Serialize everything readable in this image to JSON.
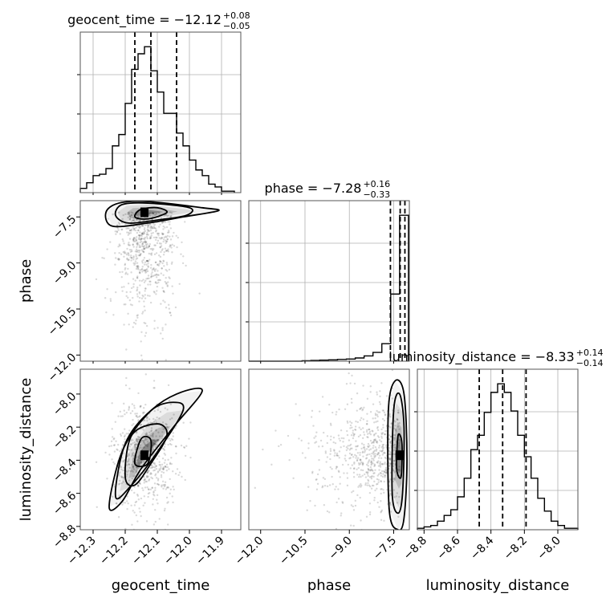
{
  "chart_data": {
    "type": "corner",
    "parameters": [
      "geocent_time",
      "phase",
      "luminosity_distance"
    ],
    "marginals": [
      {
        "parameter": "geocent_time",
        "title_main": "geocent_time = −12.12",
        "title_upper": "+0.08",
        "title_lower": "−0.05",
        "median": -12.12,
        "q_low": -12.17,
        "q_high": -12.04,
        "range": [
          -12.34,
          -11.84
        ],
        "bin_edges": [
          -12.34,
          -12.32,
          -12.3,
          -12.28,
          -12.26,
          -12.24,
          -12.22,
          -12.2,
          -12.18,
          -12.16,
          -12.14,
          -12.12,
          -12.1,
          -12.08,
          -12.06,
          -12.04,
          -12.02,
          -12.0,
          -11.98,
          -11.96,
          -11.94,
          -11.92,
          -11.9,
          -11.88,
          -11.86
        ],
        "counts": [
          3,
          7,
          12,
          13,
          17,
          33,
          41,
          63,
          87,
          98,
          103,
          86,
          71,
          56,
          56,
          42,
          33,
          23,
          16,
          12,
          6,
          4,
          1,
          1
        ]
      },
      {
        "parameter": "phase",
        "title_main": "phase = −7.28",
        "title_upper": "+0.16",
        "title_lower": "−0.33",
        "median": -7.28,
        "q_low": -7.61,
        "q_high": -7.12,
        "range": [
          -12.4,
          -6.97
        ],
        "bin_edges": [
          -12.4,
          -12.1,
          -11.8,
          -11.5,
          -11.2,
          -10.9,
          -10.6,
          -10.3,
          -10.0,
          -9.7,
          -9.4,
          -9.1,
          -8.8,
          -8.5,
          -8.2,
          -7.9,
          -7.6,
          -7.3,
          -7.0
        ],
        "counts": [
          0,
          0,
          0,
          0,
          0,
          0,
          0.3,
          0.5,
          0.7,
          0.9,
          1.2,
          1.5,
          2.2,
          3.6,
          6.0,
          12,
          46,
          100
        ]
      },
      {
        "parameter": "luminosity_distance",
        "title_main": "luminosity_distance = −8.33",
        "title_upper": "+0.14",
        "title_lower": "−0.14",
        "median": -8.33,
        "q_low": -8.47,
        "q_high": -8.19,
        "range": [
          -8.84,
          -7.88
        ],
        "bin_edges": [
          -8.84,
          -8.8,
          -8.76,
          -8.72,
          -8.68,
          -8.64,
          -8.6,
          -8.56,
          -8.52,
          -8.48,
          -8.44,
          -8.4,
          -8.36,
          -8.32,
          -8.28,
          -8.24,
          -8.2,
          -8.16,
          -8.12,
          -8.08,
          -8.04,
          -8.0,
          -7.96,
          -7.92,
          -7.88
        ],
        "counts": [
          1,
          2,
          3,
          6,
          10,
          14,
          23,
          36,
          56,
          66,
          82,
          96,
          102,
          96,
          83,
          66,
          51,
          36,
          22,
          13,
          6,
          3,
          1,
          1
        ]
      }
    ],
    "joints": [
      {
        "x_param": "geocent_time",
        "y_param": "phase",
        "xlim": [
          -12.34,
          -11.84
        ],
        "ylim": [
          -12.2,
          -6.97
        ],
        "peak": [
          -12.14,
          -7.35
        ],
        "contours": [
          [
            [
              -12.17,
              -7.45
            ],
            [
              -12.15,
              -7.25
            ],
            [
              -12.1,
              -7.2
            ],
            [
              -12.07,
              -7.35
            ],
            [
              -12.12,
              -7.55
            ],
            [
              -12.16,
              -7.55
            ]
          ],
          [
            [
              -12.23,
              -7.45
            ],
            [
              -12.21,
              -7.1
            ],
            [
              -12.13,
              -7.05
            ],
            [
              -12.0,
              -7.2
            ],
            [
              -12.01,
              -7.45
            ],
            [
              -12.1,
              -7.6
            ],
            [
              -12.19,
              -7.7
            ]
          ],
          [
            [
              -12.26,
              -7.35
            ],
            [
              -12.22,
              -7.05
            ],
            [
              -12.13,
              -7.0
            ],
            [
              -11.96,
              -7.2
            ],
            [
              -11.91,
              -7.3
            ],
            [
              -12.02,
              -7.5
            ],
            [
              -12.13,
              -7.7
            ],
            [
              -12.24,
              -7.8
            ]
          ]
        ],
        "scatter_spread": [
          0.05,
          1.0
        ]
      },
      {
        "x_param": "geocent_time",
        "y_param": "luminosity_distance",
        "xlim": [
          -12.34,
          -11.84
        ],
        "ylim": [
          -8.82,
          -7.85
        ],
        "peak": [
          -12.14,
          -8.37
        ],
        "contours": [
          [
            [
              -12.17,
              -8.42
            ],
            [
              -12.15,
              -8.27
            ],
            [
              -12.12,
              -8.28
            ],
            [
              -12.13,
              -8.42
            ]
          ],
          [
            [
              -12.2,
              -8.5
            ],
            [
              -12.18,
              -8.25
            ],
            [
              -12.1,
              -8.18
            ],
            [
              -12.07,
              -8.25
            ],
            [
              -12.12,
              -8.42
            ],
            [
              -12.17,
              -8.55
            ]
          ],
          [
            [
              -12.23,
              -8.62
            ],
            [
              -12.2,
              -8.3
            ],
            [
              -12.12,
              -8.1
            ],
            [
              -12.05,
              -8.05
            ],
            [
              -12.02,
              -8.1
            ],
            [
              -12.1,
              -8.35
            ],
            [
              -12.18,
              -8.55
            ]
          ],
          [
            [
              -12.25,
              -8.68
            ],
            [
              -12.21,
              -8.35
            ],
            [
              -12.13,
              -8.12
            ],
            [
              -12.04,
              -8.0
            ],
            [
              -11.96,
              -7.98
            ],
            [
              -12.05,
              -8.2
            ],
            [
              -12.15,
              -8.45
            ],
            [
              -12.21,
              -8.65
            ]
          ]
        ],
        "scatter_spread": [
          0.05,
          0.17
        ]
      },
      {
        "x_param": "phase",
        "y_param": "luminosity_distance",
        "xlim": [
          -12.4,
          -6.97
        ],
        "ylim": [
          -8.82,
          -7.85
        ],
        "peak": [
          -7.3,
          -8.37
        ],
        "contours": [
          [
            [
              -7.4,
              -8.45
            ],
            [
              -7.35,
              -8.25
            ],
            [
              -7.22,
              -8.3
            ],
            [
              -7.25,
              -8.5
            ]
          ],
          [
            [
              -7.55,
              -8.6
            ],
            [
              -7.5,
              -8.1
            ],
            [
              -7.3,
              -8.0
            ],
            [
              -7.15,
              -8.2
            ],
            [
              -7.2,
              -8.6
            ],
            [
              -7.35,
              -8.72
            ]
          ],
          [
            [
              -7.65,
              -8.7
            ],
            [
              -7.68,
              -8.1
            ],
            [
              -7.45,
              -7.92
            ],
            [
              -7.15,
              -8.0
            ],
            [
              -7.05,
              -8.4
            ],
            [
              -7.15,
              -8.75
            ],
            [
              -7.35,
              -8.82
            ]
          ]
        ],
        "scatter_spread": [
          0.9,
          0.17
        ]
      }
    ],
    "x_ticks": {
      "geocent_time": [
        "−12.3",
        "−12.2",
        "−12.1",
        "−12.0",
        "−11.9"
      ],
      "phase": [
        "−12.0",
        "−10.5",
        "−9.0",
        "−7.5"
      ],
      "luminosity_distance": [
        "−8.8",
        "−8.6",
        "−8.4",
        "−8.2",
        "−8.0"
      ]
    },
    "x_tick_values": {
      "geocent_time": [
        -12.3,
        -12.2,
        -12.1,
        -12.0,
        -11.9
      ],
      "phase": [
        -12.0,
        -10.5,
        -9.0,
        -7.5
      ],
      "luminosity_distance": [
        -8.8,
        -8.6,
        -8.4,
        -8.2,
        -8.0
      ]
    },
    "y_ticks": {
      "phase": [
        "−7.5",
        "−9.0",
        "−10.5",
        "−12.0"
      ],
      "luminosity_distance": [
        "−8.0",
        "−8.2",
        "−8.4",
        "−8.6",
        "−8.8"
      ]
    },
    "y_tick_values": {
      "phase": [
        -7.5,
        -9.0,
        -10.5,
        -12.0
      ],
      "luminosity_distance": [
        -8.0,
        -8.2,
        -8.4,
        -8.6,
        -8.8
      ]
    },
    "axis_labels": {
      "x": [
        "geocent_time",
        "phase",
        "luminosity_distance"
      ],
      "y": [
        "phase",
        "luminosity_distance"
      ]
    },
    "grid": true
  }
}
